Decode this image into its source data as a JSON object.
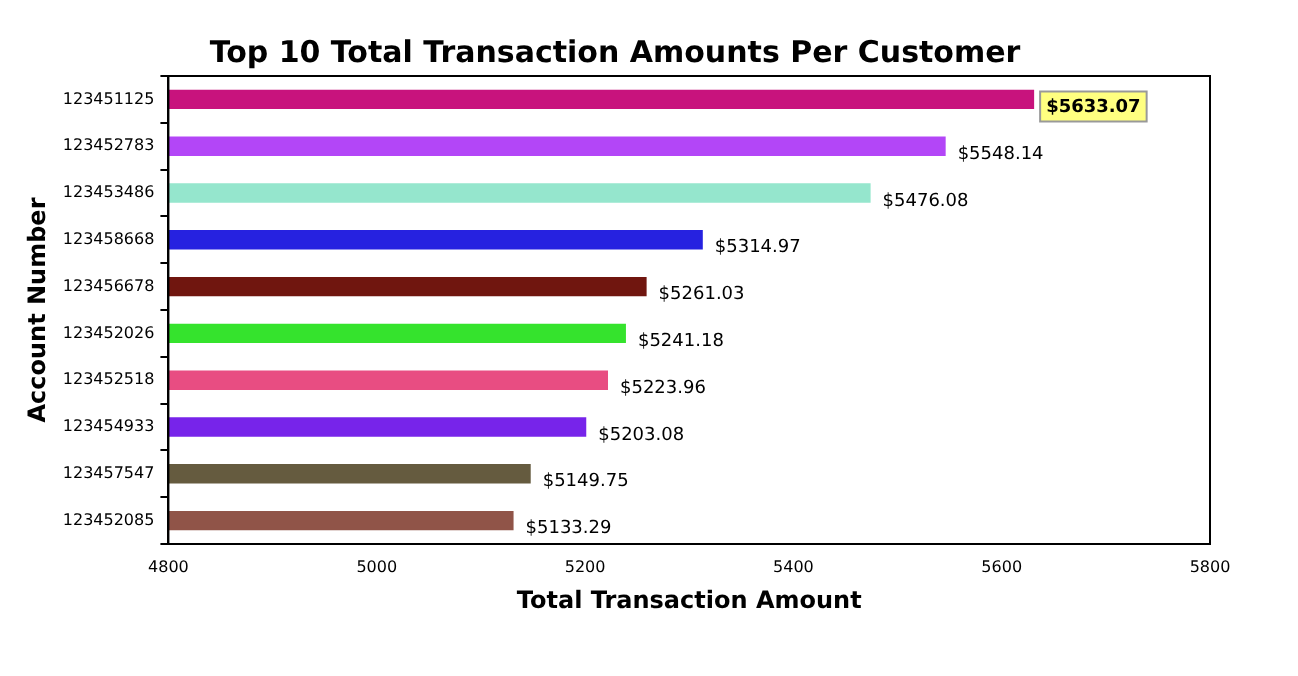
{
  "chart_data": {
    "type": "bar",
    "orientation": "horizontal",
    "title": "Top 10 Total Transaction Amounts Per Customer",
    "xlabel": "Total Transaction Amount",
    "ylabel": "Account Number",
    "categories": [
      "123451125",
      "123452783",
      "123453486",
      "123458668",
      "123456678",
      "123452026",
      "123452518",
      "123454933",
      "123457547",
      "123452085"
    ],
    "values": [
      5633.07,
      5548.14,
      5476.08,
      5314.97,
      5261.03,
      5241.18,
      5223.96,
      5203.08,
      5149.75,
      5133.29
    ],
    "value_labels": [
      "$5633.07",
      "$5548.14",
      "$5476.08",
      "$5314.97",
      "$5261.03",
      "$5241.18",
      "$5223.96",
      "$5203.08",
      "$5149.75",
      "$5133.29"
    ],
    "colors": [
      "#c8137d",
      "#b346f7",
      "#95e6cd",
      "#2622e0",
      "#70160f",
      "#35e32d",
      "#e84d82",
      "#7724ea",
      "#655b3f",
      "#905448"
    ],
    "xlim": [
      4800,
      5800
    ],
    "xticks": [
      4800,
      5000,
      5200,
      5400,
      5600,
      5800
    ],
    "grid": false,
    "legend": false
  }
}
